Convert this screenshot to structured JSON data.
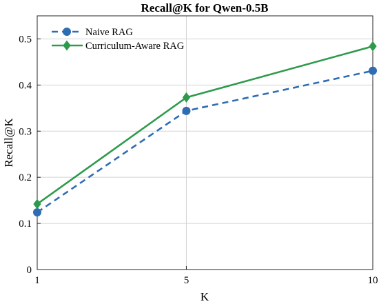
{
  "chart_data": {
    "type": "line",
    "title": "Recall@K for Qwen-0.5B",
    "xlabel": "K",
    "ylabel": "Recall@K",
    "x": [
      1,
      5,
      10
    ],
    "xticks": [
      1,
      5,
      10
    ],
    "yticks": [
      0,
      0.1,
      0.2,
      0.3,
      0.4,
      0.5
    ],
    "xlim": [
      1,
      10
    ],
    "ylim": [
      0,
      0.55
    ],
    "grid": true,
    "legend_position": "top-left",
    "series": [
      {
        "name": "Naive RAG",
        "values": [
          0.124,
          0.344,
          0.431
        ],
        "color": "#2f6db3",
        "line_style": "dashed",
        "marker": "circle"
      },
      {
        "name": "Curriculum-Aware RAG",
        "values": [
          0.142,
          0.373,
          0.484
        ],
        "color": "#2e9a4c",
        "line_style": "solid",
        "marker": "diamond"
      }
    ]
  }
}
